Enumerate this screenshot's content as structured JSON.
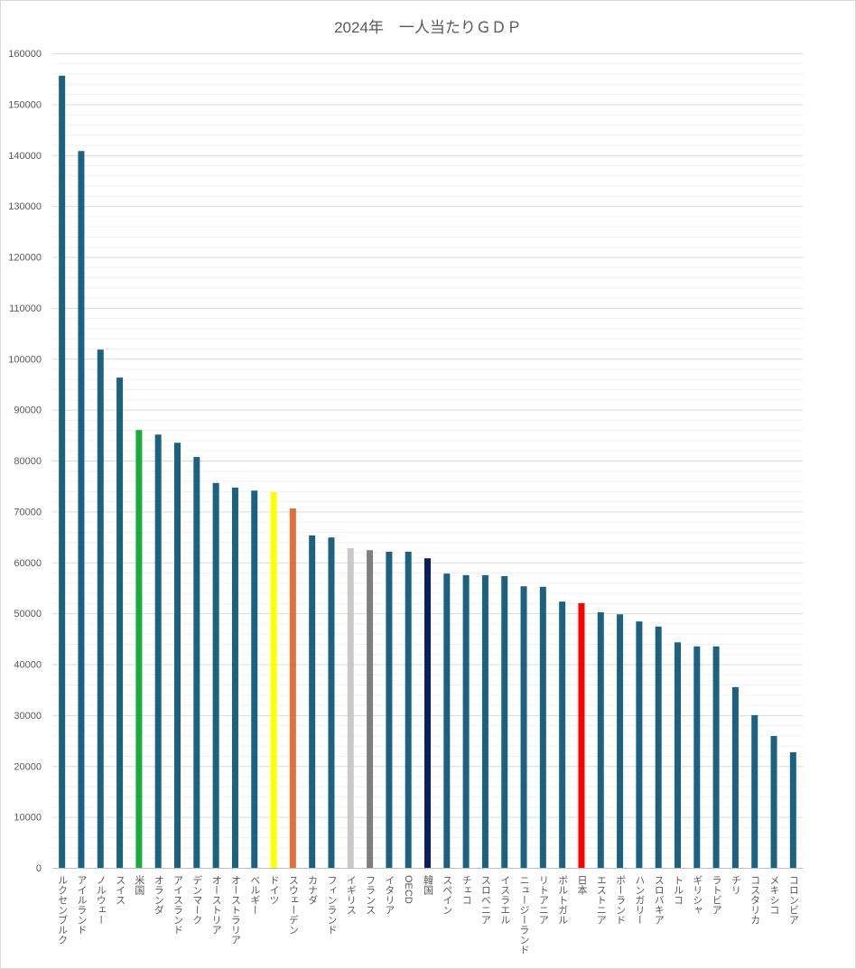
{
  "chart_data": {
    "type": "bar",
    "title": "2024年　一人当たりＧＤＰ",
    "xlabel": "",
    "ylabel": "",
    "ylim": [
      0,
      160000
    ],
    "yticks": [
      0,
      10000,
      20000,
      30000,
      40000,
      50000,
      60000,
      70000,
      80000,
      90000,
      100000,
      110000,
      120000,
      130000,
      140000,
      150000,
      160000
    ],
    "minor_grid_step": 2000,
    "grid": true,
    "default_color": "#1b6280",
    "categories": [
      "ルクセンブルク",
      "アイルランド",
      "ノルウェー",
      "スイス",
      "米国",
      "オランダ",
      "アイスランド",
      "デンマーク",
      "オーストリア",
      "オーストラリア",
      "ベルギー",
      "ドイツ",
      "スウェーデン",
      "カナダ",
      "フィンランド",
      "イギリス",
      "フランス",
      "イタリア",
      "OECD",
      "韓国",
      "スペイン",
      "チェコ",
      "スロベニア",
      "イスラエル",
      "ニュージーランド",
      "リトアニア",
      "ポルトガル",
      "日本",
      "エストニア",
      "ポーランド",
      "ハンガリー",
      "スロバキア",
      "トルコ",
      "ギリシャ",
      "ラトビア",
      "チリ",
      "コスタリカ",
      "メキシコ",
      "コロンビア"
    ],
    "values": [
      155600,
      140800,
      101800,
      96300,
      86000,
      85100,
      83500,
      80700,
      75600,
      74700,
      74100,
      73800,
      70600,
      65300,
      64900,
      62800,
      62400,
      62100,
      62100,
      60800,
      57800,
      57500,
      57500,
      57300,
      55300,
      55200,
      52300,
      52000,
      50200,
      49800,
      48400,
      47400,
      44300,
      43500,
      43500,
      35500,
      30000,
      25900,
      22700
    ],
    "highlight_colors": {
      "米国": "#1aaa3f",
      "ドイツ": "#ffff00",
      "スウェーデン": "#e2703a",
      "イギリス": "#c9c9c9",
      "フランス": "#7f7f7f",
      "韓国": "#0b1f5c",
      "日本": "#ff0000"
    }
  }
}
